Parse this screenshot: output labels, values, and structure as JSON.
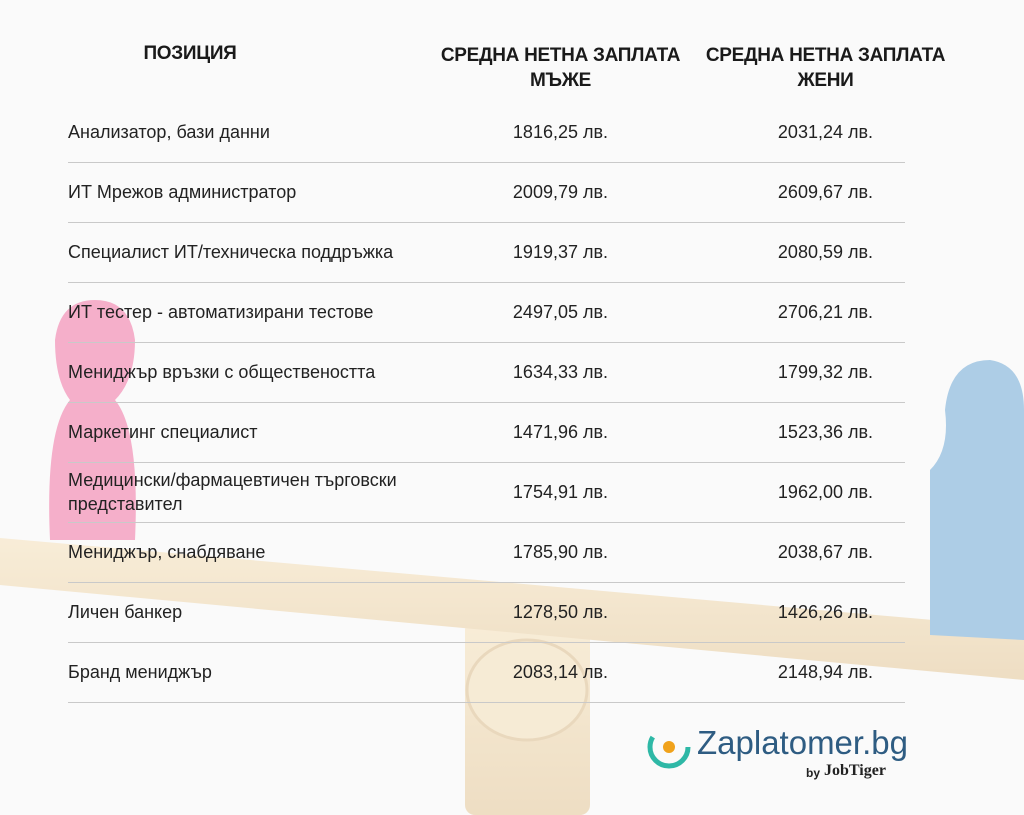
{
  "table": {
    "headers": [
      "ПОЗИЦИЯ",
      "СРЕДНА НЕТНА ЗАПЛАТА МЪЖЕ",
      "СРЕДНА НЕТНА ЗАПЛАТА ЖЕНИ"
    ],
    "rows": [
      [
        "Анализатор, бази данни",
        "1816,25 лв.",
        "2031,24 лв."
      ],
      [
        "ИТ Мрежов администратор",
        "2009,79 лв.",
        "2609,67 лв."
      ],
      [
        "Специалист ИТ/техническа поддръжка",
        "1919,37 лв.",
        "2080,59 лв."
      ],
      [
        "ИТ тестер - автоматизирани тестове",
        "2497,05 лв.",
        "2706,21 лв."
      ],
      [
        "Мениджър връзки с обществеността",
        "1634,33 лв.",
        "1799,32 лв."
      ],
      [
        "Маркетинг специалист",
        "1471,96 лв.",
        "1523,36 лв."
      ],
      [
        "Медицински/фармацевтичен търговски представител",
        "1754,91 лв.",
        "1962,00 лв."
      ],
      [
        "Мениджър, снабдяване",
        "1785,90 лв.",
        "2038,67 лв."
      ],
      [
        "Личен банкер",
        "1278,50 лв.",
        "1426,26 лв."
      ],
      [
        "Бранд мениджър",
        "2083,14 лв.",
        "2148,94 лв."
      ]
    ]
  },
  "logo": {
    "name": "Zaplatomer.bg",
    "by": "by",
    "partner": "JobTiger"
  }
}
